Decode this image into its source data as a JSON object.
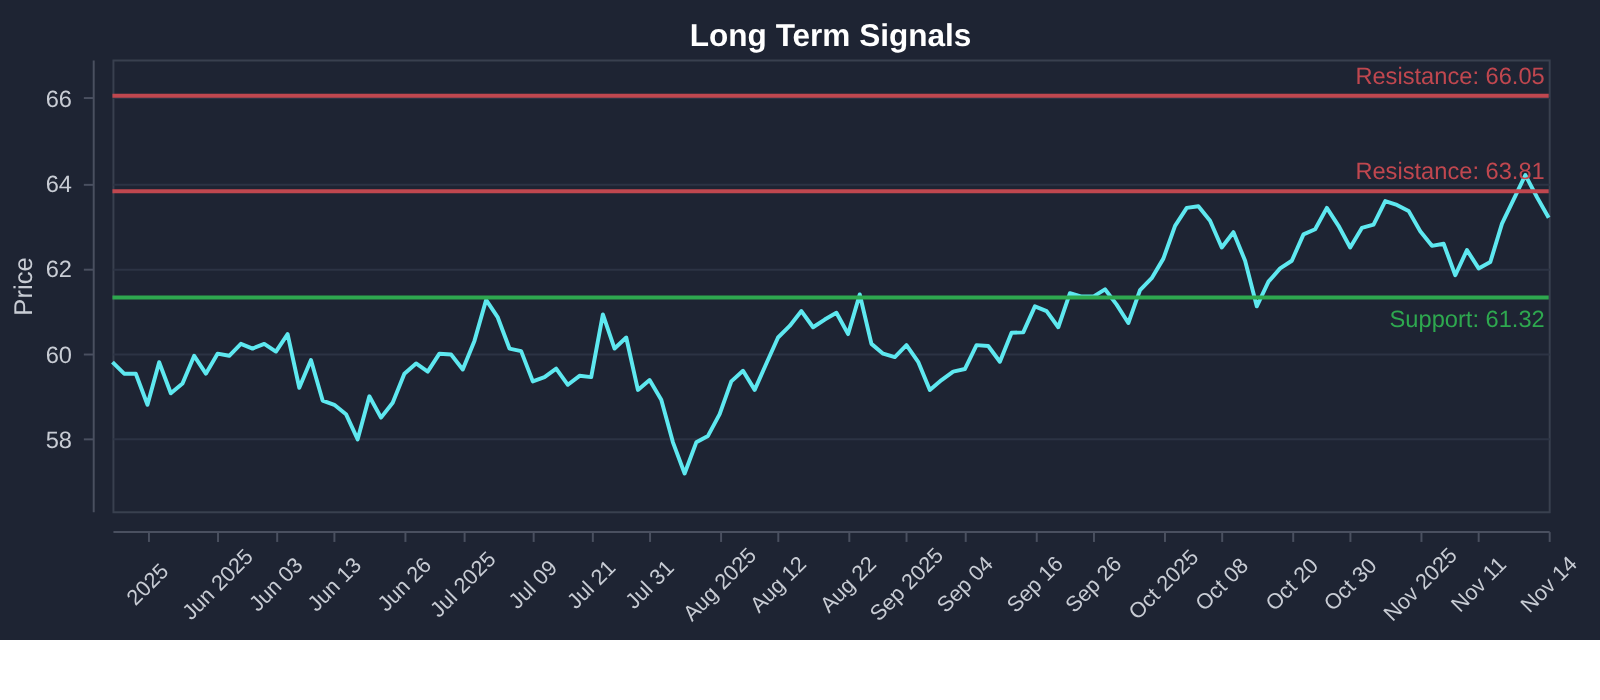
{
  "chart_data": {
    "type": "line",
    "title": "Long Term Signals",
    "ylabel": "Price",
    "categories": [
      null,
      null,
      null,
      "2025",
      null,
      null,
      null,
      null,
      null,
      "Jun 2025",
      null,
      null,
      null,
      null,
      "Jun 03",
      null,
      null,
      null,
      null,
      "Jun 13",
      null,
      null,
      null,
      null,
      null,
      "Jun 26",
      null,
      null,
      null,
      null,
      "Jul 2025",
      null,
      null,
      null,
      null,
      null,
      "Jul 09",
      null,
      null,
      null,
      null,
      "Jul 21",
      null,
      null,
      null,
      null,
      "Jul 31",
      null,
      null,
      null,
      null,
      null,
      "Aug 2025",
      null,
      null,
      null,
      null,
      "Aug 12",
      null,
      null,
      null,
      null,
      null,
      "Aug 22",
      null,
      null,
      null,
      null,
      "Sep 2025",
      null,
      null,
      null,
      null,
      "Sep 04",
      null,
      null,
      null,
      null,
      null,
      "Sep 16",
      null,
      null,
      null,
      null,
      "Sep 26",
      null,
      null,
      null,
      null,
      null,
      "Oct 2025",
      null,
      null,
      null,
      null,
      "Oct 08",
      null,
      null,
      null,
      null,
      null,
      "Oct 20",
      null,
      null,
      null,
      null,
      "Oct 30",
      null,
      null,
      null,
      null,
      null,
      "Nov 2025",
      null,
      null,
      null,
      null,
      "Nov 11",
      null,
      null,
      null,
      null,
      null,
      "Nov 14"
    ],
    "series": [
      {
        "color": "#5ee8f0",
        "values": [
          59.8,
          59.53,
          59.53,
          58.8,
          59.8,
          59.07,
          59.3,
          59.95,
          59.53,
          60.0,
          59.95,
          60.23,
          60.12,
          60.23,
          60.05,
          60.46,
          59.2,
          59.85,
          58.9,
          58.8,
          58.58,
          57.99,
          59.0,
          58.5,
          58.85,
          59.53,
          59.77,
          59.58,
          60.0,
          59.98,
          59.63,
          60.3,
          61.26,
          60.85,
          60.12,
          60.06,
          59.35,
          59.45,
          59.65,
          59.27,
          59.48,
          59.45,
          60.92,
          60.12,
          60.38,
          59.15,
          59.38,
          58.92,
          57.92,
          57.19,
          57.92,
          58.07,
          58.58,
          59.35,
          59.6,
          59.15,
          59.77,
          60.38,
          60.65,
          61.0,
          60.62,
          60.8,
          60.96,
          60.46,
          61.39,
          60.23,
          60.0,
          59.92,
          60.2,
          59.81,
          59.15,
          59.38,
          59.58,
          59.64,
          60.2,
          60.18,
          59.81,
          60.49,
          60.5,
          61.11,
          61.0,
          60.62,
          61.42,
          61.34,
          61.34,
          61.51,
          61.15,
          60.72,
          61.49,
          61.77,
          62.23,
          63.0,
          63.42,
          63.46,
          63.12,
          62.49,
          62.85,
          62.18,
          61.11,
          61.69,
          62.0,
          62.18,
          62.8,
          62.92,
          63.42,
          63.0,
          62.49,
          62.95,
          63.03,
          63.58,
          63.49,
          63.35,
          62.87,
          62.53,
          62.58,
          61.84,
          62.43,
          62.0,
          62.15,
          63.05,
          63.62,
          64.19,
          63.67,
          63.19
        ]
      }
    ],
    "ylim": [
      56.3,
      66.9
    ],
    "yticks": [
      58,
      60,
      62,
      64,
      66
    ],
    "ref_lines": [
      {
        "axis": "y",
        "value": 66.05,
        "label": "Resistance: 66.05",
        "color": "#c0474f"
      },
      {
        "axis": "y",
        "value": 63.81,
        "label": "Resistance: 63.81",
        "color": "#c0474f"
      },
      {
        "axis": "y",
        "value": 61.32,
        "label": "Support: 61.32",
        "color": "#2ea84f"
      }
    ],
    "grid": "y",
    "marker": "none",
    "line_style": "solid"
  }
}
